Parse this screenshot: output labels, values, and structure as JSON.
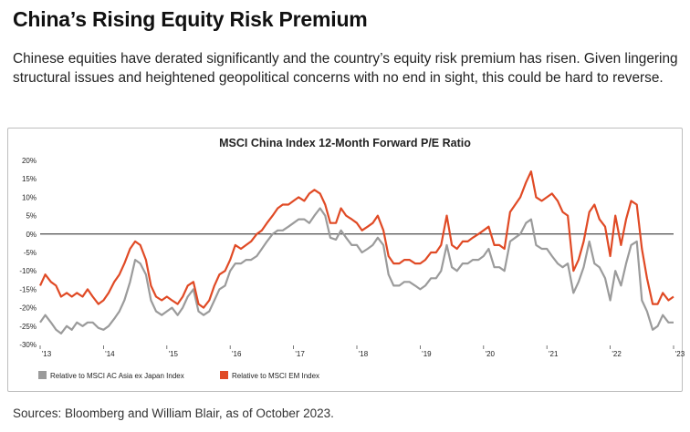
{
  "header": {
    "title": "China’s Rising Equity Risk Premium",
    "subtitle": "Chinese equities have derated significantly and the country’s equity risk premium has risen. Given lingering structural issues and heightened geopolitical concerns with no end in sight, this could be hard to reverse."
  },
  "footer": {
    "source": "Sources: Bloomberg and William Blair, as of October 2023."
  },
  "colors": {
    "series_gray": "#9b9b9b",
    "series_red": "#e04a25",
    "zero_line": "#000000"
  },
  "chart_data": {
    "type": "line",
    "title": "MSCI China Index 12-Month Forward P/E Ratio",
    "xlabel": "",
    "ylabel": "",
    "xlim": [
      2013.0,
      2023.0
    ],
    "ylim": [
      -30,
      20
    ],
    "y_ticks": [
      "20%",
      "15%",
      "10%",
      "5%",
      "0%",
      "-5%",
      "-10%",
      "-15%",
      "-20%",
      "-25%",
      "-30%"
    ],
    "y_tick_values": [
      20,
      15,
      10,
      5,
      0,
      -5,
      -10,
      -15,
      -20,
      -25,
      -30
    ],
    "x_ticks": [
      "'13",
      "'14",
      "'15",
      "'16",
      "'17",
      "'18",
      "'19",
      "'20",
      "'21",
      "'22",
      "'23"
    ],
    "x_tick_values": [
      2013,
      2014,
      2015,
      2016,
      2017,
      2018,
      2019,
      2020,
      2021,
      2022,
      2023
    ],
    "grid": false,
    "legend_position": "bottom-left",
    "series": [
      {
        "name": "Relative to MSCI AC Asia ex Japan Index",
        "color": "#9b9b9b",
        "points": [
          [
            2013.0,
            -24
          ],
          [
            2013.08,
            -22
          ],
          [
            2013.17,
            -24
          ],
          [
            2013.25,
            -26
          ],
          [
            2013.33,
            -27
          ],
          [
            2013.42,
            -25
          ],
          [
            2013.5,
            -26
          ],
          [
            2013.58,
            -24
          ],
          [
            2013.67,
            -25
          ],
          [
            2013.75,
            -24
          ],
          [
            2013.83,
            -24
          ],
          [
            2013.92,
            -25.5
          ],
          [
            2014.0,
            -26
          ],
          [
            2014.08,
            -25
          ],
          [
            2014.17,
            -23
          ],
          [
            2014.25,
            -21
          ],
          [
            2014.33,
            -18
          ],
          [
            2014.42,
            -13
          ],
          [
            2014.5,
            -7
          ],
          [
            2014.58,
            -8
          ],
          [
            2014.67,
            -11
          ],
          [
            2014.75,
            -18
          ],
          [
            2014.83,
            -21
          ],
          [
            2014.92,
            -22
          ],
          [
            2015.0,
            -21
          ],
          [
            2015.08,
            -20
          ],
          [
            2015.17,
            -22
          ],
          [
            2015.25,
            -20
          ],
          [
            2015.33,
            -17
          ],
          [
            2015.42,
            -15
          ],
          [
            2015.5,
            -21
          ],
          [
            2015.58,
            -22
          ],
          [
            2015.67,
            -21
          ],
          [
            2015.75,
            -18
          ],
          [
            2015.83,
            -15
          ],
          [
            2015.92,
            -14
          ],
          [
            2016.0,
            -10
          ],
          [
            2016.08,
            -8
          ],
          [
            2016.17,
            -8
          ],
          [
            2016.25,
            -7
          ],
          [
            2016.33,
            -7
          ],
          [
            2016.42,
            -6
          ],
          [
            2016.5,
            -4
          ],
          [
            2016.58,
            -2
          ],
          [
            2016.67,
            0
          ],
          [
            2016.75,
            1
          ],
          [
            2016.83,
            1
          ],
          [
            2016.92,
            2
          ],
          [
            2017.0,
            3
          ],
          [
            2017.08,
            4
          ],
          [
            2017.17,
            4
          ],
          [
            2017.25,
            3
          ],
          [
            2017.33,
            5
          ],
          [
            2017.42,
            7
          ],
          [
            2017.5,
            5
          ],
          [
            2017.58,
            -1
          ],
          [
            2017.67,
            -1.5
          ],
          [
            2017.75,
            1
          ],
          [
            2017.83,
            -1
          ],
          [
            2017.92,
            -3
          ],
          [
            2018.0,
            -3
          ],
          [
            2018.08,
            -5
          ],
          [
            2018.17,
            -4
          ],
          [
            2018.25,
            -3
          ],
          [
            2018.33,
            -1
          ],
          [
            2018.42,
            -3
          ],
          [
            2018.5,
            -11
          ],
          [
            2018.58,
            -14
          ],
          [
            2018.67,
            -14
          ],
          [
            2018.75,
            -13
          ],
          [
            2018.83,
            -13
          ],
          [
            2018.92,
            -14
          ],
          [
            2019.0,
            -15
          ],
          [
            2019.08,
            -14
          ],
          [
            2019.17,
            -12
          ],
          [
            2019.25,
            -12
          ],
          [
            2019.33,
            -10
          ],
          [
            2019.42,
            -3
          ],
          [
            2019.5,
            -9
          ],
          [
            2019.58,
            -10
          ],
          [
            2019.67,
            -8
          ],
          [
            2019.75,
            -8
          ],
          [
            2019.83,
            -7
          ],
          [
            2019.92,
            -7
          ],
          [
            2020.0,
            -6
          ],
          [
            2020.08,
            -4
          ],
          [
            2020.17,
            -9
          ],
          [
            2020.25,
            -9
          ],
          [
            2020.33,
            -10
          ],
          [
            2020.42,
            -2
          ],
          [
            2020.5,
            -1
          ],
          [
            2020.58,
            0
          ],
          [
            2020.67,
            3
          ],
          [
            2020.75,
            4
          ],
          [
            2020.83,
            -3
          ],
          [
            2020.92,
            -4
          ],
          [
            2021.0,
            -4
          ],
          [
            2021.08,
            -6
          ],
          [
            2021.17,
            -8
          ],
          [
            2021.25,
            -9
          ],
          [
            2021.33,
            -8
          ],
          [
            2021.42,
            -16
          ],
          [
            2021.5,
            -13
          ],
          [
            2021.58,
            -9
          ],
          [
            2021.67,
            -2
          ],
          [
            2021.75,
            -8
          ],
          [
            2021.83,
            -9
          ],
          [
            2021.92,
            -12
          ],
          [
            2022.0,
            -18
          ],
          [
            2022.08,
            -10
          ],
          [
            2022.17,
            -14
          ],
          [
            2022.25,
            -8
          ],
          [
            2022.33,
            -3
          ],
          [
            2022.42,
            -2
          ],
          [
            2022.5,
            -18
          ],
          [
            2022.58,
            -21
          ],
          [
            2022.67,
            -26
          ],
          [
            2022.75,
            -25
          ],
          [
            2022.83,
            -22
          ],
          [
            2022.92,
            -24
          ],
          [
            2023.0,
            -24
          ]
        ]
      },
      {
        "name": "Relative to MSCI EM Index",
        "color": "#e04a25",
        "points": [
          [
            2013.0,
            -14
          ],
          [
            2013.08,
            -11
          ],
          [
            2013.17,
            -13
          ],
          [
            2013.25,
            -14
          ],
          [
            2013.33,
            -17
          ],
          [
            2013.42,
            -16
          ],
          [
            2013.5,
            -17
          ],
          [
            2013.58,
            -16
          ],
          [
            2013.67,
            -17
          ],
          [
            2013.75,
            -15
          ],
          [
            2013.83,
            -17
          ],
          [
            2013.92,
            -19
          ],
          [
            2014.0,
            -18
          ],
          [
            2014.08,
            -16
          ],
          [
            2014.17,
            -13
          ],
          [
            2014.25,
            -11
          ],
          [
            2014.33,
            -8
          ],
          [
            2014.42,
            -4
          ],
          [
            2014.5,
            -2
          ],
          [
            2014.58,
            -3
          ],
          [
            2014.67,
            -7
          ],
          [
            2014.75,
            -14
          ],
          [
            2014.83,
            -17
          ],
          [
            2014.92,
            -18
          ],
          [
            2015.0,
            -17
          ],
          [
            2015.08,
            -18
          ],
          [
            2015.17,
            -19
          ],
          [
            2015.25,
            -17
          ],
          [
            2015.33,
            -14
          ],
          [
            2015.42,
            -13
          ],
          [
            2015.5,
            -19
          ],
          [
            2015.58,
            -20
          ],
          [
            2015.67,
            -18
          ],
          [
            2015.75,
            -14
          ],
          [
            2015.83,
            -11
          ],
          [
            2015.92,
            -10
          ],
          [
            2016.0,
            -7
          ],
          [
            2016.08,
            -3
          ],
          [
            2016.17,
            -4
          ],
          [
            2016.25,
            -3
          ],
          [
            2016.33,
            -2
          ],
          [
            2016.42,
            0
          ],
          [
            2016.5,
            1
          ],
          [
            2016.58,
            3
          ],
          [
            2016.67,
            5
          ],
          [
            2016.75,
            7
          ],
          [
            2016.83,
            8
          ],
          [
            2016.92,
            8
          ],
          [
            2017.0,
            9
          ],
          [
            2017.08,
            10
          ],
          [
            2017.17,
            9
          ],
          [
            2017.25,
            11
          ],
          [
            2017.33,
            12
          ],
          [
            2017.42,
            11
          ],
          [
            2017.5,
            8
          ],
          [
            2017.58,
            3
          ],
          [
            2017.67,
            3
          ],
          [
            2017.75,
            7
          ],
          [
            2017.83,
            5
          ],
          [
            2017.92,
            4
          ],
          [
            2018.0,
            3
          ],
          [
            2018.08,
            1
          ],
          [
            2018.17,
            2
          ],
          [
            2018.25,
            3
          ],
          [
            2018.33,
            5
          ],
          [
            2018.42,
            1
          ],
          [
            2018.5,
            -6
          ],
          [
            2018.58,
            -8
          ],
          [
            2018.67,
            -8
          ],
          [
            2018.75,
            -7
          ],
          [
            2018.83,
            -7
          ],
          [
            2018.92,
            -8
          ],
          [
            2019.0,
            -8
          ],
          [
            2019.08,
            -7
          ],
          [
            2019.17,
            -5
          ],
          [
            2019.25,
            -5
          ],
          [
            2019.33,
            -3
          ],
          [
            2019.42,
            5
          ],
          [
            2019.5,
            -3
          ],
          [
            2019.58,
            -4
          ],
          [
            2019.67,
            -2
          ],
          [
            2019.75,
            -2
          ],
          [
            2019.83,
            -1
          ],
          [
            2019.92,
            0
          ],
          [
            2020.0,
            1
          ],
          [
            2020.08,
            2
          ],
          [
            2020.17,
            -3
          ],
          [
            2020.25,
            -3
          ],
          [
            2020.33,
            -4
          ],
          [
            2020.42,
            6
          ],
          [
            2020.5,
            8
          ],
          [
            2020.58,
            10
          ],
          [
            2020.67,
            14
          ],
          [
            2020.75,
            17
          ],
          [
            2020.83,
            10
          ],
          [
            2020.92,
            9
          ],
          [
            2021.0,
            10
          ],
          [
            2021.08,
            11
          ],
          [
            2021.17,
            9
          ],
          [
            2021.25,
            6
          ],
          [
            2021.33,
            5
          ],
          [
            2021.42,
            -10
          ],
          [
            2021.5,
            -7
          ],
          [
            2021.58,
            -2
          ],
          [
            2021.67,
            6
          ],
          [
            2021.75,
            8
          ],
          [
            2021.83,
            4
          ],
          [
            2021.92,
            2
          ],
          [
            2022.0,
            -6
          ],
          [
            2022.08,
            5
          ],
          [
            2022.17,
            -3
          ],
          [
            2022.25,
            4
          ],
          [
            2022.33,
            9
          ],
          [
            2022.42,
            8
          ],
          [
            2022.5,
            -4
          ],
          [
            2022.58,
            -12
          ],
          [
            2022.67,
            -19
          ],
          [
            2022.75,
            -19
          ],
          [
            2022.83,
            -16
          ],
          [
            2022.92,
            -18
          ],
          [
            2023.0,
            -17
          ]
        ]
      }
    ]
  }
}
